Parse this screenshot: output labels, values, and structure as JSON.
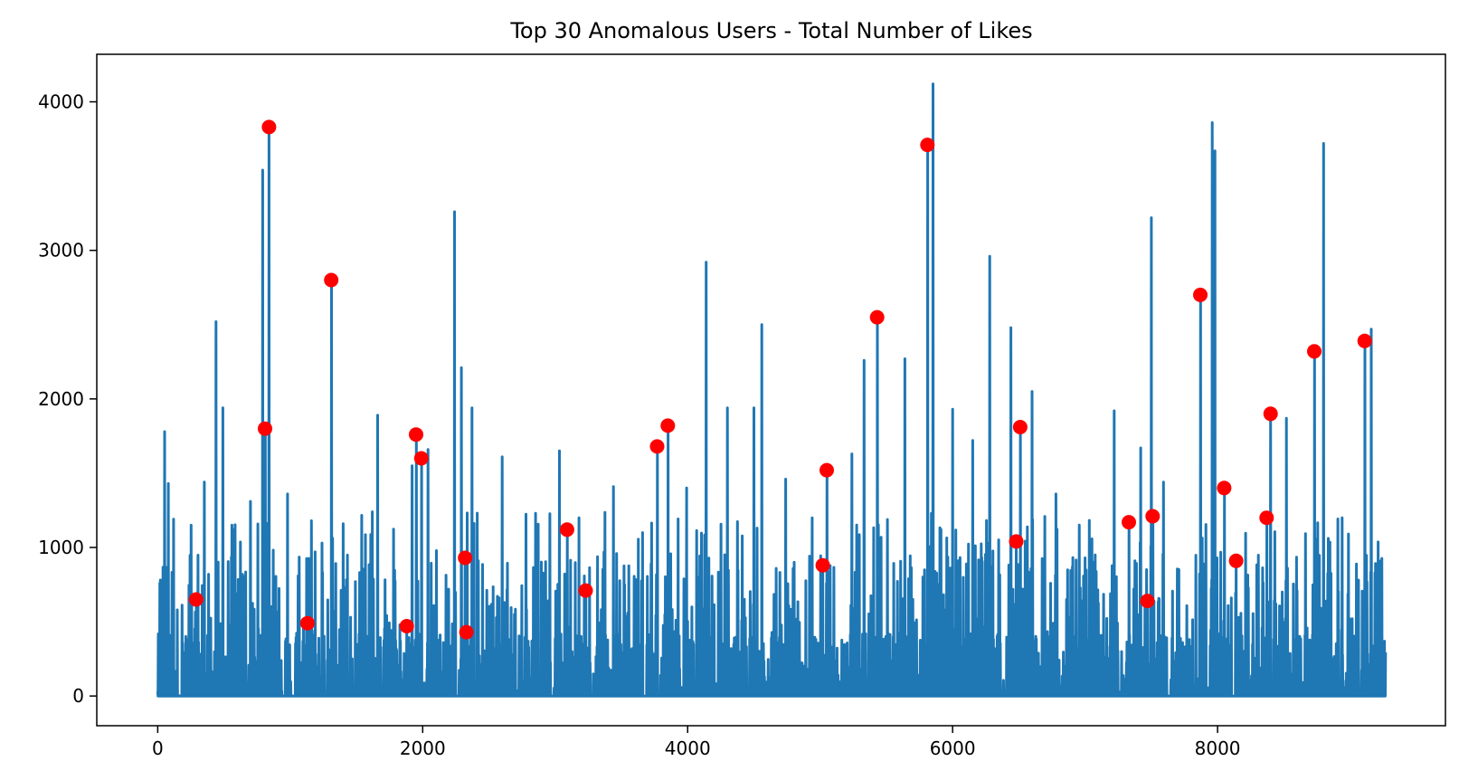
{
  "chart_data": {
    "type": "line",
    "title": "Top 30 Anomalous Users - Total Number of Likes",
    "xlabel": "",
    "ylabel": "",
    "xlim": [
      -460,
      9720
    ],
    "ylim": [
      -200,
      4320
    ],
    "xticks": [
      0,
      2000,
      4000,
      6000,
      8000
    ],
    "yticks": [
      0,
      1000,
      2000,
      3000,
      4000
    ],
    "grid": false,
    "line_color": "#1f77b4",
    "marker_color": "#ff0000",
    "x_max": 9270,
    "series_peaks": [
      {
        "x": 50,
        "y": 1780
      },
      {
        "x": 80,
        "y": 1430
      },
      {
        "x": 120,
        "y": 1190
      },
      {
        "x": 250,
        "y": 1150
      },
      {
        "x": 290,
        "y": 650
      },
      {
        "x": 350,
        "y": 1440
      },
      {
        "x": 440,
        "y": 2520
      },
      {
        "x": 490,
        "y": 1940
      },
      {
        "x": 560,
        "y": 1150
      },
      {
        "x": 700,
        "y": 1310
      },
      {
        "x": 790,
        "y": 3540
      },
      {
        "x": 810,
        "y": 1800
      },
      {
        "x": 840,
        "y": 3830
      },
      {
        "x": 980,
        "y": 1360
      },
      {
        "x": 1100,
        "y": 480
      },
      {
        "x": 1160,
        "y": 1180
      },
      {
        "x": 1310,
        "y": 2800
      },
      {
        "x": 1400,
        "y": 1160
      },
      {
        "x": 1620,
        "y": 1240
      },
      {
        "x": 1660,
        "y": 1890
      },
      {
        "x": 1880,
        "y": 470
      },
      {
        "x": 1920,
        "y": 1550
      },
      {
        "x": 1950,
        "y": 1760
      },
      {
        "x": 1990,
        "y": 1600
      },
      {
        "x": 2040,
        "y": 1660
      },
      {
        "x": 2240,
        "y": 3260
      },
      {
        "x": 2290,
        "y": 2210
      },
      {
        "x": 2320,
        "y": 930
      },
      {
        "x": 2330,
        "y": 430
      },
      {
        "x": 2370,
        "y": 1940
      },
      {
        "x": 2600,
        "y": 1610
      },
      {
        "x": 2850,
        "y": 1230
      },
      {
        "x": 3030,
        "y": 1650
      },
      {
        "x": 3090,
        "y": 1120
      },
      {
        "x": 3180,
        "y": 1200
      },
      {
        "x": 3230,
        "y": 710
      },
      {
        "x": 3440,
        "y": 1410
      },
      {
        "x": 3660,
        "y": 1100
      },
      {
        "x": 3770,
        "y": 1680
      },
      {
        "x": 3850,
        "y": 1820
      },
      {
        "x": 3990,
        "y": 1400
      },
      {
        "x": 4140,
        "y": 2920
      },
      {
        "x": 4300,
        "y": 1940
      },
      {
        "x": 4500,
        "y": 1940
      },
      {
        "x": 4560,
        "y": 2500
      },
      {
        "x": 4740,
        "y": 1460
      },
      {
        "x": 5020,
        "y": 880
      },
      {
        "x": 5050,
        "y": 1520
      },
      {
        "x": 5240,
        "y": 1630
      },
      {
        "x": 5330,
        "y": 2260
      },
      {
        "x": 5430,
        "y": 2550
      },
      {
        "x": 5640,
        "y": 2270
      },
      {
        "x": 5810,
        "y": 3710
      },
      {
        "x": 5850,
        "y": 4120
      },
      {
        "x": 6000,
        "y": 1930
      },
      {
        "x": 6150,
        "y": 1720
      },
      {
        "x": 6280,
        "y": 2960
      },
      {
        "x": 6440,
        "y": 2480
      },
      {
        "x": 6480,
        "y": 1040
      },
      {
        "x": 6510,
        "y": 1810
      },
      {
        "x": 6600,
        "y": 2050
      },
      {
        "x": 6780,
        "y": 1360
      },
      {
        "x": 7220,
        "y": 1920
      },
      {
        "x": 7330,
        "y": 1170
      },
      {
        "x": 7420,
        "y": 1670
      },
      {
        "x": 7470,
        "y": 640
      },
      {
        "x": 7500,
        "y": 3220
      },
      {
        "x": 7510,
        "y": 1210
      },
      {
        "x": 7590,
        "y": 1440
      },
      {
        "x": 7870,
        "y": 2700
      },
      {
        "x": 7960,
        "y": 3860
      },
      {
        "x": 7980,
        "y": 3670
      },
      {
        "x": 8050,
        "y": 1400
      },
      {
        "x": 8140,
        "y": 910
      },
      {
        "x": 8370,
        "y": 1200
      },
      {
        "x": 8400,
        "y": 1900
      },
      {
        "x": 8520,
        "y": 1870
      },
      {
        "x": 8730,
        "y": 2320
      },
      {
        "x": 8800,
        "y": 3720
      },
      {
        "x": 9110,
        "y": 2390
      },
      {
        "x": 9160,
        "y": 2470
      },
      {
        "x": 9230,
        "y": 910
      }
    ],
    "anomalies": [
      {
        "x": 290,
        "y": 650
      },
      {
        "x": 810,
        "y": 1800
      },
      {
        "x": 840,
        "y": 3830
      },
      {
        "x": 1130,
        "y": 490
      },
      {
        "x": 1310,
        "y": 2800
      },
      {
        "x": 1880,
        "y": 470
      },
      {
        "x": 1950,
        "y": 1760
      },
      {
        "x": 1990,
        "y": 1600
      },
      {
        "x": 2320,
        "y": 930
      },
      {
        "x": 2330,
        "y": 430
      },
      {
        "x": 3090,
        "y": 1120
      },
      {
        "x": 3230,
        "y": 710
      },
      {
        "x": 3770,
        "y": 1680
      },
      {
        "x": 3850,
        "y": 1820
      },
      {
        "x": 5020,
        "y": 880
      },
      {
        "x": 5050,
        "y": 1520
      },
      {
        "x": 5430,
        "y": 2550
      },
      {
        "x": 5810,
        "y": 3710
      },
      {
        "x": 6480,
        "y": 1040
      },
      {
        "x": 6510,
        "y": 1810
      },
      {
        "x": 7330,
        "y": 1170
      },
      {
        "x": 7470,
        "y": 640
      },
      {
        "x": 7510,
        "y": 1210
      },
      {
        "x": 7870,
        "y": 2700
      },
      {
        "x": 8050,
        "y": 1400
      },
      {
        "x": 8140,
        "y": 910
      },
      {
        "x": 8370,
        "y": 1200
      },
      {
        "x": 8400,
        "y": 1900
      },
      {
        "x": 8730,
        "y": 2320
      },
      {
        "x": 9110,
        "y": 2390
      }
    ]
  }
}
